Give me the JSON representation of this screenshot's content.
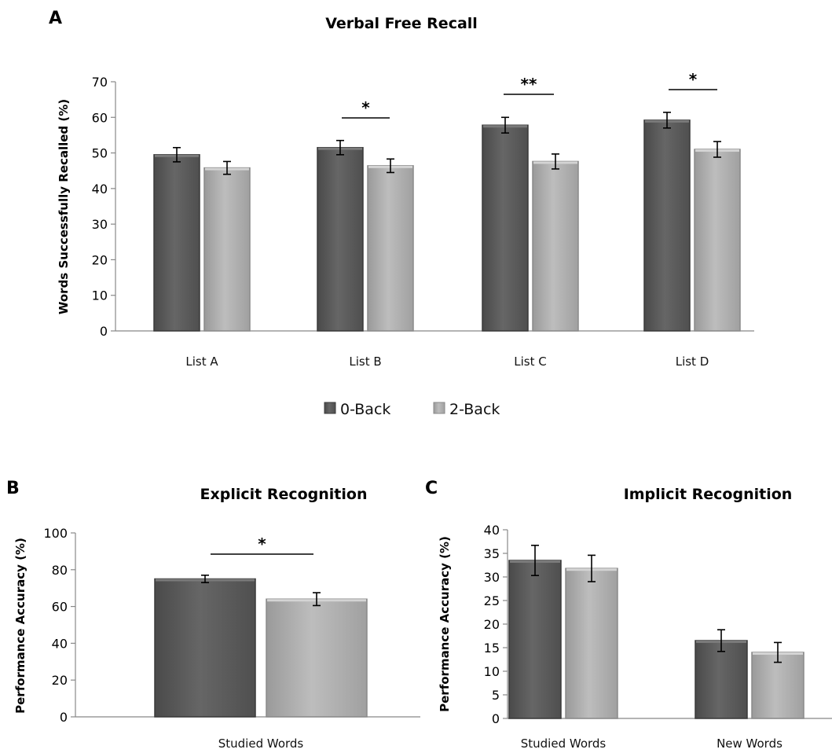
{
  "chart_data": [
    {
      "panel": "A",
      "type": "bar",
      "title": "Verbal Free Recall",
      "ylabel": "Words Successfully Recalled (%)",
      "xlabel": "",
      "ylim": [
        0,
        70
      ],
      "yticks": [
        0,
        10,
        20,
        30,
        40,
        50,
        60,
        70
      ],
      "categories": [
        "List A",
        "List B",
        "List C",
        "List D"
      ],
      "series": [
        {
          "name": "0-Back",
          "values": [
            49.5,
            51.5,
            57.8,
            59.2
          ],
          "errors": [
            2.0,
            2.0,
            2.2,
            2.2
          ]
        },
        {
          "name": "2-Back",
          "values": [
            45.8,
            46.4,
            47.6,
            51.0
          ],
          "errors": [
            1.8,
            1.9,
            2.1,
            2.2
          ]
        }
      ],
      "annotations": [
        "",
        "*",
        "**",
        "*"
      ],
      "legend": "bottom",
      "grid": false
    },
    {
      "panel": "B",
      "type": "bar",
      "title": "Explicit Recognition",
      "ylabel": "Performance Accuracy (%)",
      "xlabel": "",
      "ylim": [
        0,
        100
      ],
      "yticks": [
        0,
        20,
        40,
        60,
        80,
        100
      ],
      "categories": [
        "Studied Words"
      ],
      "series": [
        {
          "name": "0-Back",
          "values": [
            75.0
          ],
          "errors": [
            2.0
          ]
        },
        {
          "name": "2-Back",
          "values": [
            64.0
          ],
          "errors": [
            3.5
          ]
        }
      ],
      "annotations": [
        "*"
      ],
      "grid": false
    },
    {
      "panel": "C",
      "type": "bar",
      "title": "Implicit Recognition",
      "ylabel": "Performance Accuracy (%)",
      "xlabel": "",
      "ylim": [
        0,
        40
      ],
      "yticks": [
        0,
        5,
        10,
        15,
        20,
        25,
        30,
        35,
        40
      ],
      "categories": [
        "Studied Words",
        "New Words"
      ],
      "series": [
        {
          "name": "0-Back",
          "values": [
            33.5,
            16.5
          ],
          "errors": [
            3.2,
            2.3
          ]
        },
        {
          "name": "2-Back",
          "values": [
            31.8,
            14.0
          ],
          "errors": [
            2.8,
            2.1
          ]
        }
      ],
      "annotations": [
        "",
        ""
      ],
      "grid": false
    }
  ],
  "colors": {
    "zero_back_fill": "#5a5a5a",
    "zero_back_edge": "#3a3a3a",
    "zero_back_top": "#7a7a7a",
    "two_back_fill": "#a6a6a6",
    "two_back_edge": "#8a8a8a",
    "two_back_top": "#d4d4d4"
  }
}
